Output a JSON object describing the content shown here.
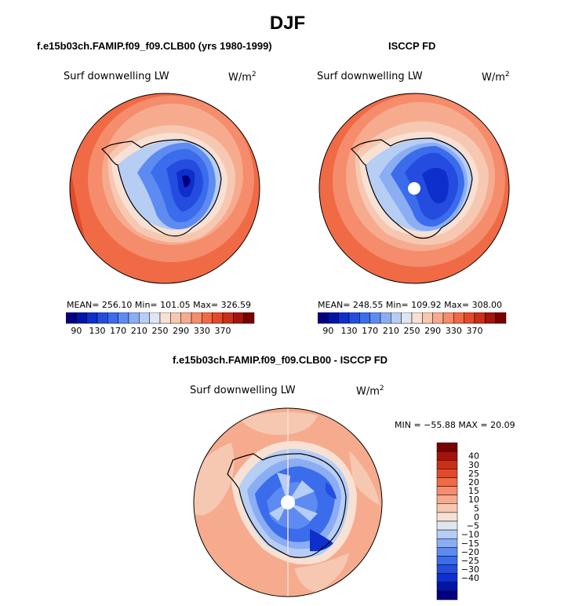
{
  "title": "DJF",
  "colors": {
    "blues": [
      "#03007f",
      "#0015a5",
      "#0e2fcb",
      "#244ddf",
      "#3a6ceb",
      "#5d8bf1",
      "#8aadf4",
      "#b6cdf4",
      "#dfe6ef"
    ],
    "reds": [
      "#f7e1d4",
      "#f7c8b1",
      "#f6ab8e",
      "#f58c6b",
      "#f06a45",
      "#e3492a",
      "#c92f19",
      "#a5140b",
      "#7a0000"
    ]
  },
  "panels": [
    {
      "name": "model",
      "title": "f.e15b03ch.FAMIP.f09_f09.CLB00 (yrs 1980-1999)",
      "variable": "Surf downwelling LW",
      "unit_base": "W/m",
      "unit_exp": "2",
      "stats_text": "MEAN= 256.10   Min= 101.05   Max= 326.59",
      "mean": 256.1,
      "min": 101.05,
      "max": 326.59
    },
    {
      "name": "obs",
      "title": "ISCCP FD",
      "variable": "Surf downwelling LW",
      "unit_base": "W/m",
      "unit_exp": "2",
      "stats_text": "MEAN= 248.55   Min= 109.92   Max= 308.00",
      "mean": 248.55,
      "min": 109.92,
      "max": 308.0
    },
    {
      "name": "diff",
      "title": "f.e15b03ch.FAMIP.f09_f09.CLB00 - ISCCP FD",
      "variable": "Surf downwelling LW",
      "unit_base": "W/m",
      "unit_exp": "2",
      "stats_text": "MIN = −55.88 MAX =  20.09",
      "min": -55.88,
      "max": 20.09
    }
  ],
  "colorbar_h": {
    "levels": 18,
    "labels": [
      "90",
      "130",
      "170",
      "210",
      "250",
      "290",
      "330",
      "370"
    ]
  },
  "colorbar_v": {
    "levels": 18,
    "labels": [
      "40",
      "30",
      "25",
      "20",
      "15",
      "10",
      "5",
      "0",
      "−5",
      "−10",
      "−15",
      "−20",
      "−25",
      "−30",
      "−40"
    ]
  }
}
